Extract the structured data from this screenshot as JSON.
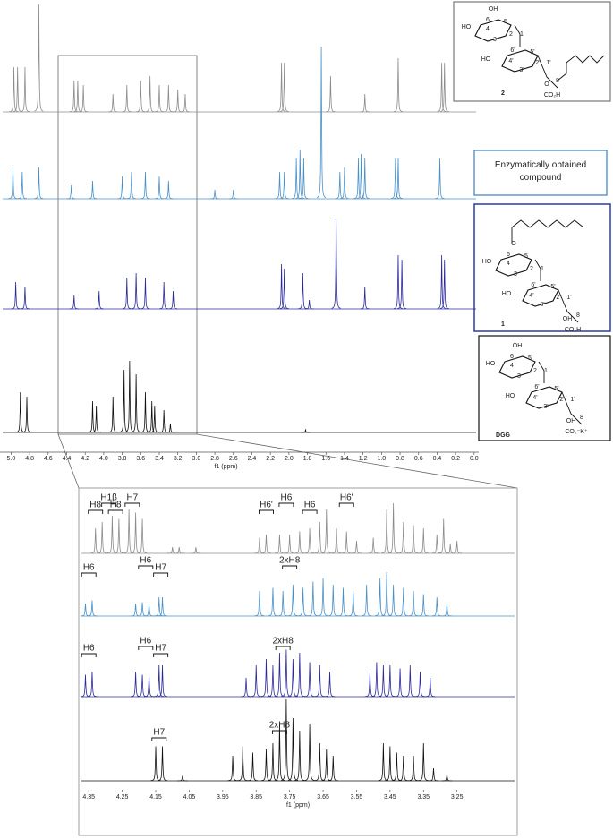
{
  "chart_data": [
    {
      "type": "spectrum",
      "xlabel": "f1 (ppm)",
      "xlim": [
        5.12,
        -0.05
      ],
      "xticks": [
        {
          "value": 5,
          "label": "5.0"
        },
        4.8,
        4.6,
        4.4,
        4.2,
        {
          "value": 4,
          "label": "4.0"
        },
        3.8,
        3.6,
        3.4,
        3.2,
        {
          "value": 3,
          "label": "3.0"
        },
        2.8,
        2.6,
        2.4,
        2.2,
        {
          "value": 2,
          "label": "2.0"
        },
        1.8,
        1.6,
        1.4,
        1.2,
        {
          "value": 1,
          "label": "1.0"
        },
        0.8,
        0.6,
        0.4,
        0.2,
        {
          "value": 0,
          "label": "0.0"
        }
      ],
      "series": [
        {
          "name": "2",
          "color": "#8c8c8c",
          "x": [
            4.97,
            4.93,
            4.85,
            4.7,
            4.32,
            4.28,
            4.22,
            3.9,
            3.75,
            3.6,
            3.5,
            3.4,
            3.3,
            3.2,
            3.12,
            2.08,
            2.05,
            1.55,
            1.18,
            0.82,
            0.35,
            0.32
          ],
          "values": [
            0.5,
            0.5,
            0.5,
            1.2,
            0.35,
            0.35,
            0.3,
            0.2,
            0.3,
            0.35,
            0.4,
            0.3,
            0.3,
            0.25,
            0.2,
            0.55,
            0.55,
            0.4,
            0.2,
            0.6,
            0.55,
            0.55
          ]
        },
        {
          "name": "Enzymatically obtained compound",
          "color": "#4a90c8",
          "x": [
            4.98,
            4.88,
            4.7,
            4.35,
            4.12,
            3.8,
            3.7,
            3.55,
            3.4,
            3.3,
            2.8,
            2.6,
            2.1,
            2.05,
            1.92,
            1.88,
            1.84,
            1.65,
            1.45,
            1.4,
            1.25,
            1.22,
            1.18,
            0.85,
            0.82,
            0.37
          ],
          "values": [
            0.35,
            0.3,
            0.35,
            0.15,
            0.2,
            0.25,
            0.3,
            0.3,
            0.25,
            0.2,
            0.1,
            0.1,
            0.3,
            0.3,
            0.45,
            0.55,
            0.45,
            1.7,
            0.3,
            0.35,
            0.45,
            0.5,
            0.45,
            0.45,
            0.45,
            0.45
          ]
        },
        {
          "name": "1",
          "color": "#2a2a9a",
          "x": [
            4.95,
            4.85,
            4.32,
            4.05,
            3.75,
            3.65,
            3.55,
            3.35,
            3.25,
            2.08,
            2.05,
            1.85,
            1.78,
            1.49,
            1.18,
            0.82,
            0.78,
            0.35,
            0.32
          ],
          "values": [
            0.3,
            0.25,
            0.15,
            0.2,
            0.35,
            0.4,
            0.35,
            0.3,
            0.2,
            0.5,
            0.45,
            0.4,
            0.1,
            1.0,
            0.25,
            0.6,
            0.55,
            0.6,
            0.55
          ]
        },
        {
          "name": "DGG",
          "color": "#111111",
          "x": [
            4.9,
            4.83,
            4.12,
            4.08,
            3.9,
            3.78,
            3.72,
            3.65,
            3.55,
            3.48,
            3.45,
            3.35,
            3.28,
            1.82
          ],
          "values": [
            0.45,
            0.4,
            0.35,
            0.3,
            0.4,
            0.7,
            0.8,
            0.65,
            0.45,
            0.35,
            0.3,
            0.25,
            0.1,
            0.03
          ]
        }
      ]
    },
    {
      "type": "spectrum",
      "xlabel": "f1 (ppm)",
      "xlim": [
        4.38,
        3.07
      ],
      "xticks": [
        4.35,
        4.25,
        4.15,
        4.05,
        3.95,
        3.85,
        3.75,
        3.65,
        3.55,
        3.45,
        3.35,
        3.25
      ],
      "series": [
        {
          "color": "#8c8c8c",
          "x": [
            4.33,
            4.31,
            4.28,
            4.26,
            4.23,
            4.21,
            4.19,
            4.1,
            4.08,
            4.03,
            3.84,
            3.82,
            3.78,
            3.75,
            3.72,
            3.69,
            3.66,
            3.64,
            3.61,
            3.58,
            3.55,
            3.5,
            3.46,
            3.44,
            3.41,
            3.38,
            3.35,
            3.31,
            3.29,
            3.27,
            3.25
          ],
          "values": [
            0.4,
            0.5,
            0.6,
            0.55,
            0.7,
            0.65,
            0.55,
            0.1,
            0.1,
            0.1,
            0.25,
            0.3,
            0.3,
            0.3,
            0.35,
            0.4,
            0.5,
            0.7,
            0.4,
            0.35,
            0.2,
            0.25,
            0.7,
            0.8,
            0.5,
            0.45,
            0.4,
            0.3,
            0.55,
            0.15,
            0.2
          ],
          "annotations": [
            {
              "label": "H8",
              "x": 4.33
            },
            {
              "label": "H1β",
              "x": 4.29
            },
            {
              "label": "H8",
              "x": 4.27
            },
            {
              "label": "H7",
              "x": 4.22
            },
            {
              "label": "H6'",
              "x": 3.82
            },
            {
              "label": "H6",
              "x": 3.76
            },
            {
              "label": "H6",
              "x": 3.69
            },
            {
              "label": "H6'",
              "x": 3.58
            }
          ]
        },
        {
          "color": "#4a90c8",
          "x": [
            4.36,
            4.34,
            4.21,
            4.19,
            4.17,
            4.14,
            4.13,
            3.84,
            3.8,
            3.77,
            3.74,
            3.71,
            3.68,
            3.65,
            3.62,
            3.59,
            3.56,
            3.52,
            3.48,
            3.46,
            3.44,
            3.41,
            3.38,
            3.35,
            3.31,
            3.28
          ],
          "values": [
            0.2,
            0.25,
            0.2,
            0.22,
            0.2,
            0.3,
            0.3,
            0.4,
            0.45,
            0.4,
            0.5,
            0.45,
            0.55,
            0.6,
            0.5,
            0.45,
            0.4,
            0.5,
            0.6,
            0.7,
            0.5,
            0.45,
            0.4,
            0.35,
            0.3,
            0.2
          ],
          "annotations": [
            {
              "label": "H6",
              "x": 4.35
            },
            {
              "label": "H6",
              "x": 4.18
            },
            {
              "label": "H7",
              "x": 4.135
            },
            {
              "label": "2xH8",
              "x": 3.75
            }
          ]
        },
        {
          "color": "#2a2a9a",
          "x": [
            4.36,
            4.34,
            4.21,
            4.19,
            4.17,
            4.14,
            4.13,
            3.88,
            3.85,
            3.82,
            3.8,
            3.78,
            3.76,
            3.74,
            3.72,
            3.69,
            3.66,
            3.63,
            3.51,
            3.49,
            3.47,
            3.45,
            3.42,
            3.39,
            3.36,
            3.33
          ],
          "values": [
            0.35,
            0.4,
            0.4,
            0.35,
            0.35,
            0.5,
            0.5,
            0.3,
            0.5,
            0.6,
            0.5,
            0.7,
            0.75,
            0.6,
            0.7,
            0.55,
            0.5,
            0.4,
            0.4,
            0.55,
            0.5,
            0.5,
            0.45,
            0.5,
            0.4,
            0.3
          ],
          "annotations": [
            {
              "label": "H6",
              "x": 4.35
            },
            {
              "label": "H6",
              "x": 4.18
            },
            {
              "label": "H7",
              "x": 4.135
            },
            {
              "label": "2xH8",
              "x": 3.77
            }
          ]
        },
        {
          "color": "#111111",
          "x": [
            4.15,
            4.13,
            4.07,
            3.92,
            3.89,
            3.86,
            3.82,
            3.8,
            3.78,
            3.76,
            3.74,
            3.72,
            3.69,
            3.66,
            3.64,
            3.62,
            3.47,
            3.45,
            3.43,
            3.41,
            3.38,
            3.35,
            3.32,
            3.28
          ],
          "values": [
            0.55,
            0.55,
            0.08,
            0.4,
            0.55,
            0.45,
            0.5,
            0.6,
            0.9,
            1.3,
            1.0,
            0.8,
            0.9,
            0.6,
            0.5,
            0.4,
            0.6,
            0.55,
            0.45,
            0.4,
            0.4,
            0.6,
            0.2,
            0.1
          ],
          "annotations": [
            {
              "label": "H7",
              "x": 4.14
            },
            {
              "label": "2xH8",
              "x": 3.78
            }
          ]
        }
      ]
    }
  ],
  "structures": [
    {
      "labels": [
        "OH",
        "6",
        "HO",
        "4",
        "3",
        "5",
        "2",
        "1",
        "HO",
        "6'",
        "4'",
        "3'",
        "5'",
        "2'",
        "1'",
        "O",
        "8",
        "CO₂H"
      ]
    },
    {
      "labels": [
        "O",
        "6",
        "HO",
        "4",
        "3",
        "5",
        "2",
        "1",
        "HO",
        "6'",
        "4'",
        "3'",
        "5'",
        "2'",
        "1'",
        "OH",
        "8",
        "CO₂H"
      ]
    },
    {
      "labels": [
        "OH",
        "6",
        "HO",
        "4",
        "3",
        "5",
        "2",
        "1",
        "HO",
        "6'",
        "4'",
        "3'",
        "5'",
        "2'",
        "1'",
        "OH",
        "8",
        "CO₂⁻K⁺"
      ]
    }
  ]
}
